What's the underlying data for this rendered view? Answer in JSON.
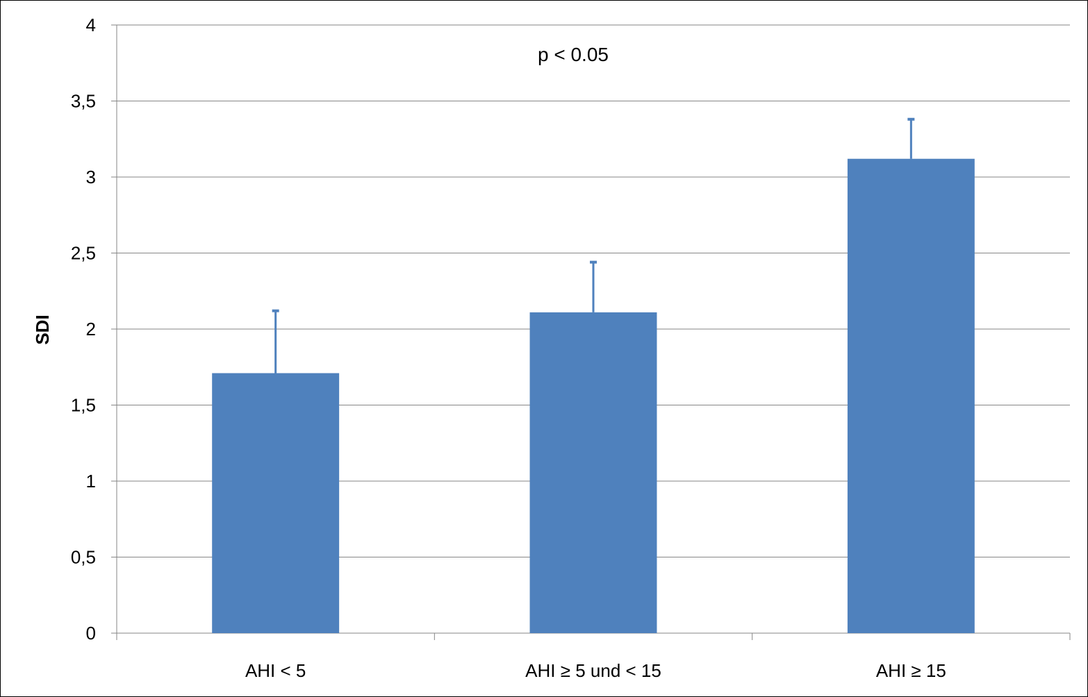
{
  "chart_data": {
    "type": "bar",
    "categories": [
      "AHI < 5",
      "AHI ≥ 5 und < 15",
      "AHI ≥ 15"
    ],
    "values": [
      1.71,
      2.11,
      3.12
    ],
    "error_upper": [
      2.12,
      2.44,
      3.38
    ],
    "ylabel": "SDI",
    "xlabel": "",
    "annotation": "p < 0.05",
    "ylim": [
      0,
      4
    ],
    "yticks": [
      0,
      0.5,
      1,
      1.5,
      2,
      2.5,
      3,
      3.5,
      4
    ],
    "ytick_labels": [
      "0",
      "0,5",
      "1",
      "1,5",
      "2",
      "2,5",
      "3",
      "3,5",
      "4"
    ],
    "grid": true,
    "legend": "none",
    "colors": {
      "bar": "#4f81bd",
      "grid": "#868686",
      "axis": "#868686"
    }
  }
}
